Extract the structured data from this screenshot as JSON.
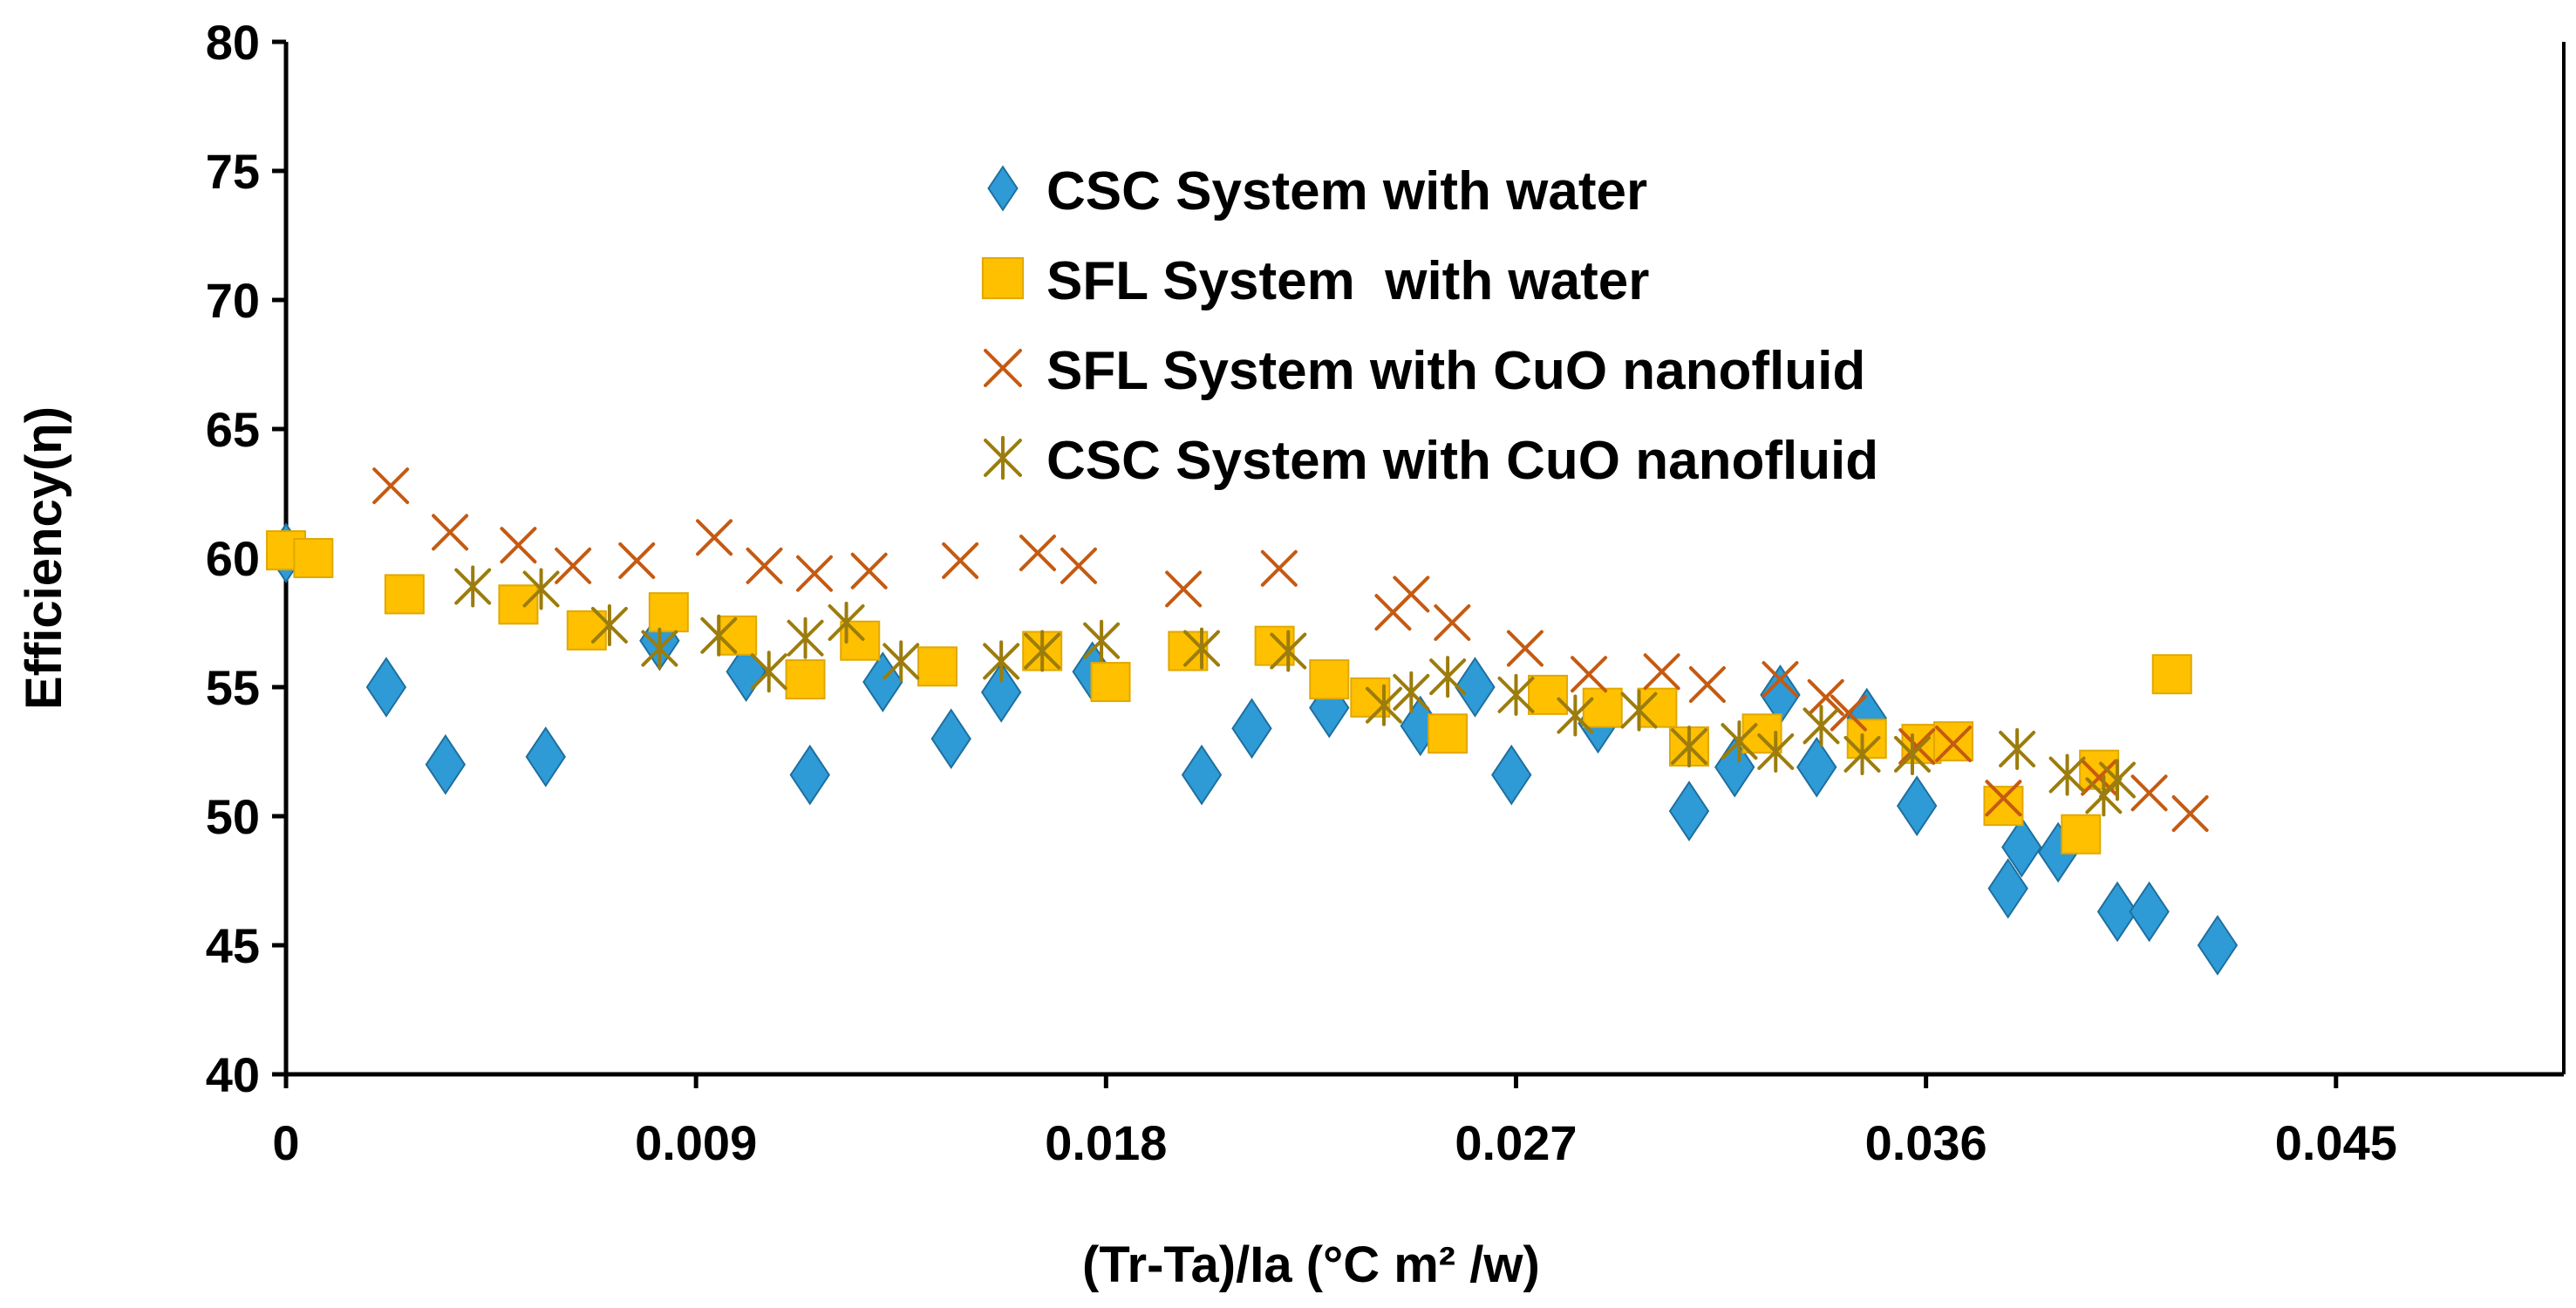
{
  "chart_data": {
    "type": "scatter",
    "title": "",
    "xlabel": "(Tr-Ta)/Ia (°C m² /w)",
    "ylabel": "Efficiency(η)",
    "xlim": [
      0,
      0.05
    ],
    "ylim": [
      40,
      80
    ],
    "xticks": [
      "0",
      "0.009",
      "0.018",
      "0.027",
      "0.036",
      "0.045"
    ],
    "xtick_values": [
      0,
      0.009,
      0.018,
      0.027,
      0.036,
      0.045
    ],
    "yticks": [
      "40",
      "45",
      "50",
      "55",
      "60",
      "65",
      "70",
      "75",
      "80"
    ],
    "ytick_values": [
      40,
      45,
      50,
      55,
      60,
      65,
      70,
      75,
      80
    ],
    "grid": false,
    "legend_position": "top-center",
    "series": [
      {
        "name": "CSC System with water",
        "marker": "diamond",
        "color": "#2e9bd6",
        "stroke": "#1f6f9f",
        "points": [
          [
            0.0,
            60.2
          ],
          [
            0.0022,
            55.0
          ],
          [
            0.0035,
            52.0
          ],
          [
            0.0057,
            52.3
          ],
          [
            0.0082,
            56.8
          ],
          [
            0.0101,
            55.6
          ],
          [
            0.0115,
            51.6
          ],
          [
            0.0131,
            55.2
          ],
          [
            0.0146,
            53.0
          ],
          [
            0.0157,
            54.8
          ],
          [
            0.0177,
            55.6
          ],
          [
            0.0201,
            51.6
          ],
          [
            0.0212,
            53.4
          ],
          [
            0.0229,
            54.2
          ],
          [
            0.0249,
            53.5
          ],
          [
            0.0261,
            55.0
          ],
          [
            0.0269,
            51.6
          ],
          [
            0.0288,
            53.6
          ],
          [
            0.0308,
            50.2
          ],
          [
            0.0318,
            51.9
          ],
          [
            0.0328,
            54.7
          ],
          [
            0.0336,
            51.9
          ],
          [
            0.0347,
            53.8
          ],
          [
            0.0358,
            50.4
          ],
          [
            0.0378,
            47.2
          ],
          [
            0.0381,
            48.8
          ],
          [
            0.0389,
            48.6
          ],
          [
            0.0402,
            46.3
          ],
          [
            0.0409,
            46.3
          ],
          [
            0.0424,
            45.0
          ]
        ]
      },
      {
        "name": "SFL System  with water",
        "marker": "square",
        "color": "#ffc000",
        "stroke": "#e0a800",
        "points": [
          [
            0.0,
            60.3
          ],
          [
            0.0006,
            60.0
          ],
          [
            0.0026,
            58.6
          ],
          [
            0.0051,
            58.2
          ],
          [
            0.0066,
            57.2
          ],
          [
            0.0084,
            57.9
          ],
          [
            0.0099,
            57.0
          ],
          [
            0.0114,
            55.3
          ],
          [
            0.0126,
            56.8
          ],
          [
            0.0143,
            55.8
          ],
          [
            0.0166,
            56.4
          ],
          [
            0.0181,
            55.2
          ],
          [
            0.0198,
            56.4
          ],
          [
            0.0217,
            56.6
          ],
          [
            0.0229,
            55.3
          ],
          [
            0.0238,
            54.6
          ],
          [
            0.0255,
            53.2
          ],
          [
            0.0277,
            54.7
          ],
          [
            0.0289,
            54.2
          ],
          [
            0.0301,
            54.2
          ],
          [
            0.0308,
            52.7
          ],
          [
            0.0324,
            53.2
          ],
          [
            0.0347,
            53.0
          ],
          [
            0.0359,
            52.8
          ],
          [
            0.0366,
            52.9
          ],
          [
            0.0377,
            50.4
          ],
          [
            0.0394,
            49.3
          ],
          [
            0.0398,
            51.8
          ],
          [
            0.0414,
            55.5
          ]
        ]
      },
      {
        "name": "SFL System with CuO nanofluid",
        "marker": "x",
        "color": "#c55a11",
        "stroke": "#c55a11",
        "points": [
          [
            0.0023,
            62.8
          ],
          [
            0.0036,
            61.0
          ],
          [
            0.0051,
            60.5
          ],
          [
            0.0063,
            59.7
          ],
          [
            0.0077,
            59.9
          ],
          [
            0.0094,
            60.8
          ],
          [
            0.0105,
            59.7
          ],
          [
            0.0116,
            59.4
          ],
          [
            0.0128,
            59.5
          ],
          [
            0.0148,
            59.9
          ],
          [
            0.0165,
            60.2
          ],
          [
            0.0174,
            59.7
          ],
          [
            0.0197,
            58.8
          ],
          [
            0.0218,
            59.6
          ],
          [
            0.0243,
            57.9
          ],
          [
            0.0247,
            58.6
          ],
          [
            0.0256,
            57.5
          ],
          [
            0.0272,
            56.5
          ],
          [
            0.0286,
            55.5
          ],
          [
            0.0302,
            55.6
          ],
          [
            0.0312,
            55.1
          ],
          [
            0.0328,
            55.3
          ],
          [
            0.0338,
            54.6
          ],
          [
            0.0343,
            54.0
          ],
          [
            0.0358,
            52.7
          ],
          [
            0.0366,
            52.8
          ],
          [
            0.0377,
            50.7
          ],
          [
            0.0398,
            51.5
          ],
          [
            0.0409,
            50.9
          ],
          [
            0.0418,
            50.1
          ]
        ]
      },
      {
        "name": "CSC System with CuO nanofluid",
        "marker": "star",
        "color": "#9c7c0c",
        "stroke": "#9c7c0c",
        "points": [
          [
            0.0041,
            58.9
          ],
          [
            0.0056,
            58.8
          ],
          [
            0.0071,
            57.4
          ],
          [
            0.0082,
            56.5
          ],
          [
            0.0095,
            57.0
          ],
          [
            0.0106,
            55.6
          ],
          [
            0.0114,
            56.9
          ],
          [
            0.0123,
            57.5
          ],
          [
            0.0135,
            56.0
          ],
          [
            0.0157,
            56.0
          ],
          [
            0.0166,
            56.4
          ],
          [
            0.0179,
            56.8
          ],
          [
            0.0201,
            56.5
          ],
          [
            0.022,
            56.4
          ],
          [
            0.0241,
            54.3
          ],
          [
            0.0247,
            54.8
          ],
          [
            0.0255,
            55.4
          ],
          [
            0.027,
            54.7
          ],
          [
            0.0283,
            53.9
          ],
          [
            0.0297,
            54.1
          ],
          [
            0.0308,
            52.7
          ],
          [
            0.0319,
            52.9
          ],
          [
            0.0327,
            52.5
          ],
          [
            0.0337,
            53.5
          ],
          [
            0.0346,
            52.4
          ],
          [
            0.0357,
            52.4
          ],
          [
            0.038,
            52.6
          ],
          [
            0.0391,
            51.6
          ],
          [
            0.0399,
            50.8
          ],
          [
            0.0402,
            51.4
          ]
        ]
      }
    ]
  }
}
